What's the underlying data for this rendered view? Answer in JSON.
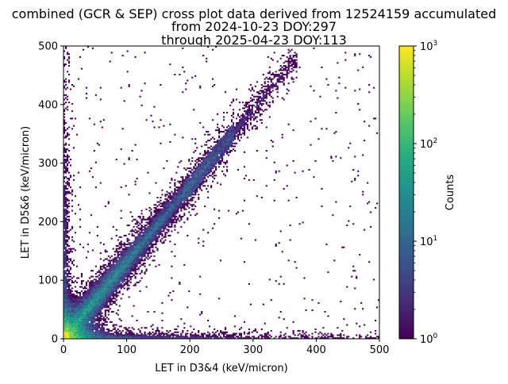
{
  "chart_data": {
    "type": "heatmap",
    "title_lines": [
      "combined (GCR & SEP) cross plot data derived from 12524159 accumulated",
      "from 2024-10-23 DOY:297",
      "through 2025-04-23 DOY:113"
    ],
    "xlabel": "LET in D3&4 (keV/micron)",
    "ylabel": "LET in D5&6 (keV/micron)",
    "xlim": [
      0,
      500
    ],
    "ylim": [
      0,
      500
    ],
    "xticks": [
      0,
      100,
      200,
      300,
      400,
      500
    ],
    "yticks": [
      0,
      100,
      200,
      300,
      400,
      500
    ],
    "colorbar": {
      "label": "Counts",
      "scale": "log",
      "range": [
        1,
        1000
      ],
      "colormap": "viridis",
      "ticks": [
        {
          "value": 1,
          "base": "10",
          "exp": "0"
        },
        {
          "value": 10,
          "base": "10",
          "exp": "1"
        },
        {
          "value": 100,
          "base": "10",
          "exp": "2"
        },
        {
          "value": 1000,
          "base": "10",
          "exp": "3"
        }
      ]
    },
    "features": [
      {
        "name": "diagonal",
        "x0": 0,
        "x1": 360,
        "y0": 0,
        "y1": 470
      },
      {
        "name": "y-axis-band",
        "x": [
          0,
          15
        ],
        "y": [
          0,
          500
        ]
      },
      {
        "name": "x-axis-band",
        "x": [
          0,
          500
        ],
        "y": [
          0,
          15
        ]
      },
      {
        "name": "dense-corner",
        "x": [
          0,
          40
        ],
        "y": [
          0,
          40
        ],
        "peak_counts": 1000
      }
    ]
  }
}
